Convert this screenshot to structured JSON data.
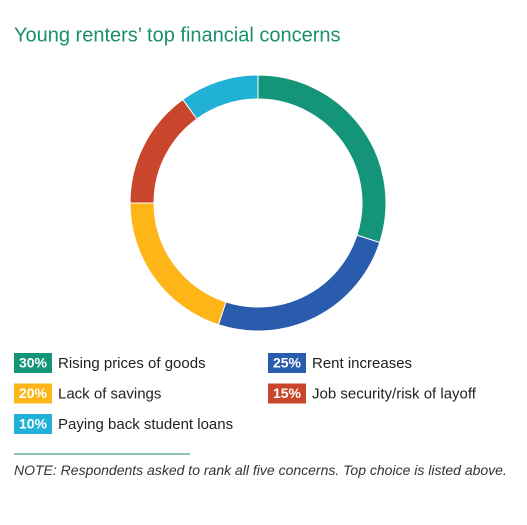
{
  "chart_data": {
    "type": "donut",
    "title": "Young renters’ top financial concerns",
    "categories": [
      "Rising prices of goods",
      "Rent increases",
      "Lack of savings",
      "Job security/risk of layoff",
      "Paying back student loans"
    ],
    "values": [
      30,
      25,
      20,
      15,
      10
    ],
    "value_labels": [
      "30%",
      "25%",
      "20%",
      "15%",
      "10%"
    ],
    "colors": [
      "#14957a",
      "#2a5cad",
      "#fdb517",
      "#c9452b",
      "#22b1d6"
    ],
    "note": "NOTE: Respondents asked to rank all five concerns. Top choice is listed above."
  }
}
